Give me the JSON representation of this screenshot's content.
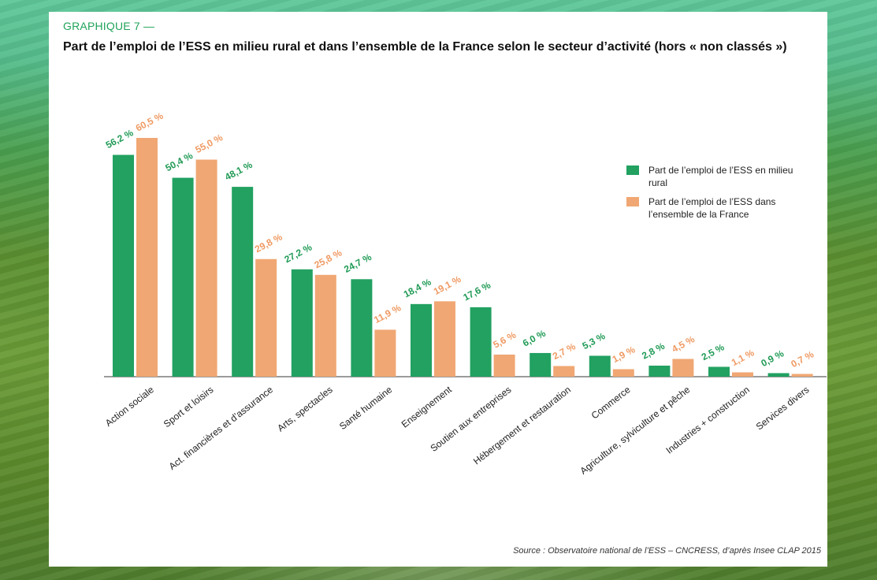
{
  "header": {
    "eyebrow": "GRAPHIQUE 7 —",
    "title": "Part de l’emploi de l’ESS en milieu rural et dans l’ensemble de la France selon le secteur d’activité (hors « non classés »)"
  },
  "legend": {
    "items": [
      {
        "label": "Part de l’emploi de l’ESS en milieu rural",
        "color": "#22a161"
      },
      {
        "label": "Part de l’emploi de l’ESS dans l’ensemble de la France",
        "color": "#f0a773"
      }
    ]
  },
  "source": "Source : Observatoire national de l’ESS – CNCRESS, d’après Insee CLAP 2015",
  "chart_data": {
    "type": "bar",
    "title": "",
    "xlabel": "",
    "ylabel": "",
    "ylim": [
      0,
      60.5
    ],
    "categories": [
      "Action sociale",
      "Sport et loisirs",
      "Act. financières et d’assurance",
      "Arts, spectacles",
      "Santé humaine",
      "Enseignement",
      "Soutien aux entreprises",
      "Hébergement et restauration",
      "Commerce",
      "Agriculture, sylviculture et pêche",
      "Industries + construction",
      "Services divers"
    ],
    "series": [
      {
        "name": "Part de l’emploi de l’ESS en milieu rural",
        "values": [
          56.2,
          50.4,
          48.1,
          27.2,
          24.7,
          18.4,
          17.6,
          6.0,
          5.3,
          2.8,
          2.5,
          0.9
        ],
        "labels": [
          "56,2 %",
          "50,4 %",
          "48,1 %",
          "27,2 %",
          "24,7 %",
          "18,4 %",
          "17,6 %",
          "6,0 %",
          "5,3 %",
          "2,8 %",
          "2,5 %",
          "0,9 %"
        ],
        "color": "#22a161",
        "label_color": "#1f9a55"
      },
      {
        "name": "Part de l’emploi de l’ESS dans l’ensemble de la France",
        "values": [
          60.5,
          55.0,
          29.8,
          25.8,
          11.9,
          19.1,
          5.6,
          2.7,
          1.9,
          4.5,
          1.1,
          0.7
        ],
        "labels": [
          "60,5 %",
          "55,0 %",
          "29,8 %",
          "25,8 %",
          "11,9 %",
          "19,1 %",
          "5,6 %",
          "2,7 %",
          "1,9 %",
          "4,5 %",
          "1,1 %",
          "0,7 %"
        ],
        "color": "#f0a773",
        "label_color": "#ef9a63"
      }
    ],
    "grid": false,
    "legend_position": "right"
  }
}
